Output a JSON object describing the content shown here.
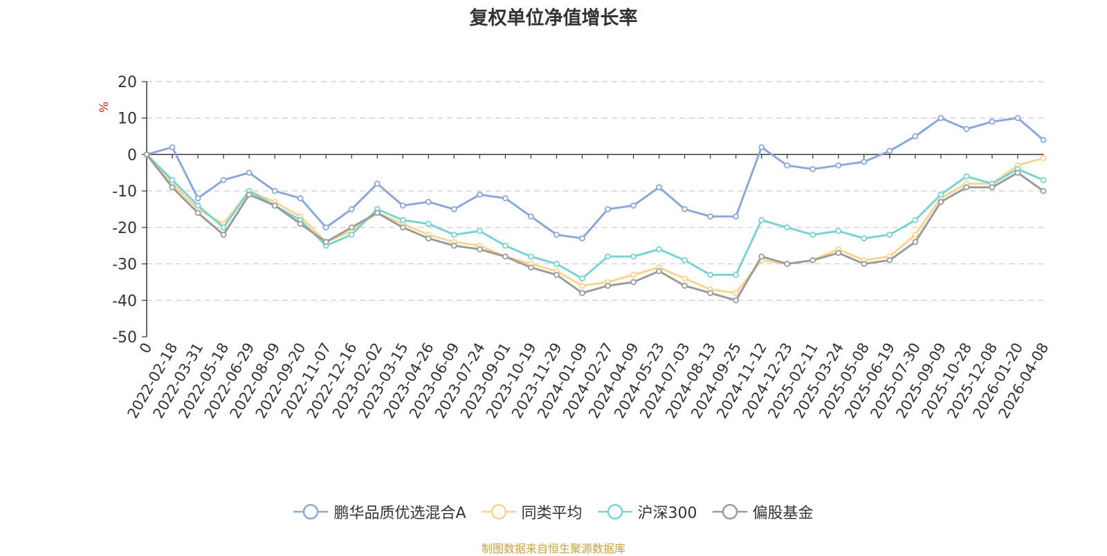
{
  "source_note": "制图数据来自恒生聚源数据库",
  "chart_data": {
    "type": "line",
    "title": "复权单位净值增长率",
    "ylabel": "%",
    "xlabel": "",
    "ylim": [
      -50,
      20
    ],
    "yticks": [
      20,
      10,
      0,
      -10,
      -20,
      -30,
      -40,
      -50
    ],
    "grid": true,
    "legend_position": "bottom-center",
    "x": [
      "0",
      "2022-02-18",
      "2022-03-31",
      "2022-05-18",
      "2022-06-29",
      "2022-08-09",
      "2022-09-20",
      "2022-11-07",
      "2022-12-16",
      "2023-02-02",
      "2023-03-15",
      "2023-04-26",
      "2023-06-09",
      "2023-07-24",
      "2023-09-01",
      "2023-10-19",
      "2023-11-29",
      "2024-01-09",
      "2024-02-27",
      "2024-04-09",
      "2024-05-23",
      "2024-07-03",
      "2024-08-13",
      "2024-09-25",
      "2024-11-12",
      "2024-12-23",
      "2025-02-11",
      "2025-03-24",
      "2025-05-08",
      "2025-06-19",
      "2025-07-30",
      "2025-09-09",
      "2025-10-28",
      "2025-12-08",
      "2026-01-20",
      "2026-04-08"
    ],
    "series": [
      {
        "name": "鹏华品质优选混合A",
        "color": "#8aa8d8",
        "values": [
          0,
          2,
          -12,
          -7,
          -5,
          -10,
          -12,
          -20,
          -15,
          -8,
          -14,
          -13,
          -15,
          -11,
          -12,
          -17,
          -22,
          -23,
          -15,
          -14,
          -9,
          -15,
          -17,
          -17,
          2,
          -3,
          -4,
          -3,
          -2,
          1,
          5,
          10,
          7,
          9,
          10,
          4
        ]
      },
      {
        "name": "同类平均",
        "color": "#fcd58c",
        "values": [
          0,
          -8,
          -15,
          -19,
          -10,
          -13,
          -17,
          -24,
          -21,
          -16,
          -19,
          -22,
          -24,
          -25,
          -28,
          -30,
          -32,
          -36,
          -35,
          -33,
          -31,
          -34,
          -37,
          -38,
          -29,
          -30,
          -29,
          -26,
          -29,
          -28,
          -22,
          -12,
          -8,
          -8,
          -3,
          -1
        ]
      },
      {
        "name": "沪深300",
        "color": "#7ad3d3",
        "values": [
          0,
          -7,
          -14,
          -20,
          -10,
          -14,
          -18,
          -25,
          -22,
          -15,
          -18,
          -19,
          -22,
          -21,
          -25,
          -28,
          -30,
          -34,
          -28,
          -28,
          -26,
          -29,
          -33,
          -33,
          -18,
          -20,
          -22,
          -21,
          -23,
          -22,
          -18,
          -11,
          -6,
          -8,
          -4,
          -7
        ]
      },
      {
        "name": "偏股基金",
        "color": "#9b9b9b",
        "values": [
          0,
          -9,
          -16,
          -22,
          -11,
          -14,
          -19,
          -24,
          -20,
          -16,
          -20,
          -23,
          -25,
          -26,
          -28,
          -31,
          -33,
          -38,
          -36,
          -35,
          -32,
          -36,
          -38,
          -40,
          -28,
          -30,
          -29,
          -27,
          -30,
          -29,
          -24,
          -13,
          -9,
          -9,
          -5,
          -10
        ]
      }
    ]
  }
}
